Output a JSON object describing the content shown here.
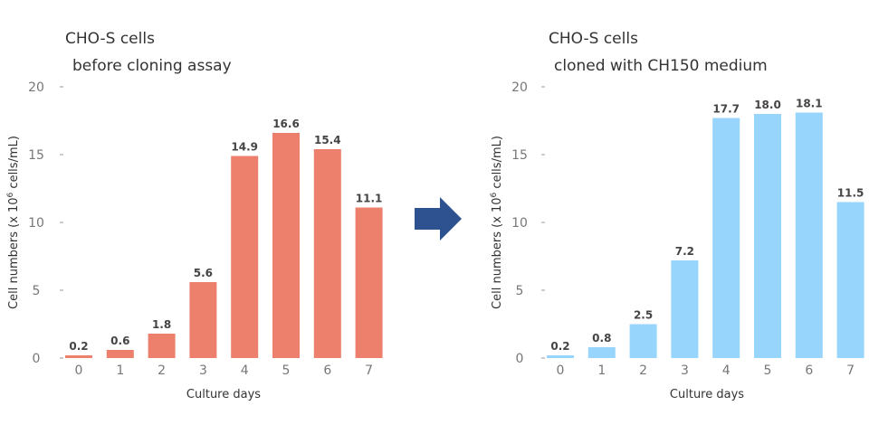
{
  "chart_data": [
    {
      "type": "bar",
      "title_line1": "CHO-S cells",
      "title_line2": "before cloning assay",
      "categories": [
        "0",
        "1",
        "2",
        "3",
        "4",
        "5",
        "6",
        "7"
      ],
      "values": [
        0.2,
        0.6,
        1.8,
        5.6,
        14.9,
        16.6,
        15.4,
        11.1
      ],
      "data_labels": [
        "0.2",
        "0.6",
        "1.8",
        "5.6",
        "14.9",
        "16.6",
        "15.4",
        "11.1"
      ],
      "xlabel": "Culture days",
      "ylabel_main": "Cell numbers (x 10",
      "ylabel_sup": "6",
      "ylabel_tail": " cells/mL)",
      "ylim": [
        0,
        20
      ],
      "yticks": [
        "0",
        "5",
        "10",
        "15",
        "20"
      ],
      "color": "#EC806C",
      "grid": false
    },
    {
      "type": "bar",
      "title_line1": "CHO-S cells",
      "title_line2": "cloned with CH150 medium",
      "categories": [
        "0",
        "1",
        "2",
        "3",
        "4",
        "5",
        "6",
        "7"
      ],
      "values": [
        0.2,
        0.8,
        2.5,
        7.2,
        17.7,
        18.0,
        18.1,
        11.5
      ],
      "data_labels": [
        "0.2",
        "0.8",
        "2.5",
        "7.2",
        "17.7",
        "18.0",
        "18.1",
        "11.5"
      ],
      "xlabel": "Culture days",
      "ylabel_main": "Cell numbers (x 10",
      "ylabel_sup": "6",
      "ylabel_tail": " cells/mL)",
      "ylim": [
        0,
        20
      ],
      "yticks": [
        "0",
        "5",
        "10",
        "15",
        "20"
      ],
      "color": "#97D5FD",
      "grid": false
    }
  ],
  "arrow": {
    "icon": "right-arrow-icon",
    "color": "#2E5190"
  }
}
